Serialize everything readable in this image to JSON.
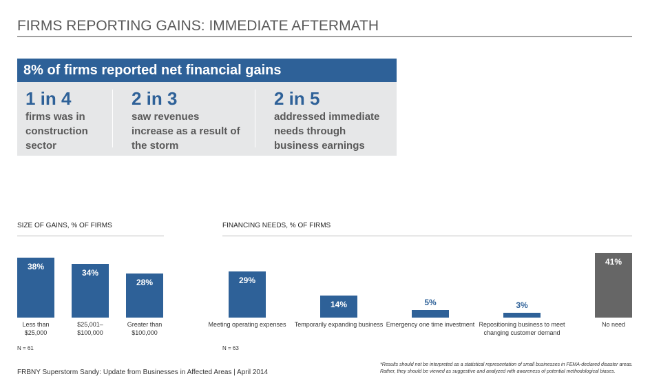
{
  "header": {
    "title": "FIRMS REPORTING GAINS: IMMEDIATE AFTERMATH"
  },
  "callout": {
    "headline": "8% of firms reported net financial gains",
    "stats": [
      {
        "figure": "1 in 4",
        "text": "firms was in construction sector"
      },
      {
        "figure": "2 in 3",
        "text": "saw revenues increase as a result of the storm"
      },
      {
        "figure": "2 in 5",
        "text": "addressed immediate needs through business earnings"
      }
    ]
  },
  "chart_data": [
    {
      "type": "bar",
      "title": "SIZE OF GAINS, % OF FIRMS",
      "categories": [
        "Less than $25,000",
        "$25,001–$100,000",
        "Greater than $100,000"
      ],
      "values": [
        38,
        34,
        28
      ],
      "value_labels": [
        "38%",
        "34%",
        "28%"
      ],
      "colors": [
        "#2e6198",
        "#2e6198",
        "#2e6198"
      ],
      "note": "N = 61"
    },
    {
      "type": "bar",
      "title": "FINANCING NEEDS, % OF FIRMS",
      "categories": [
        "Meeting operating expenses",
        "Temporarily expanding business",
        "Emergency one time investment",
        "Repositioning business to meet changing customer demand",
        "No need"
      ],
      "values": [
        29,
        14,
        5,
        3,
        41
      ],
      "value_labels": [
        "29%",
        "14%",
        "5%",
        "3%",
        "41%"
      ],
      "colors": [
        "#2e6198",
        "#2e6198",
        "#2e6198",
        "#2e6198",
        "#666666"
      ],
      "note": "N = 63"
    }
  ],
  "footer": {
    "source": "FRBNY Superstorm Sandy: Update from Businesses in Affected Areas | April 2014",
    "disclaimer": "*Results should not be interpreted as a statistical representation of small businesses in FEMA-declared disaster areas. Rather, they should be viewed as suggestive and analyzed with awareness of potential methodological biases."
  }
}
